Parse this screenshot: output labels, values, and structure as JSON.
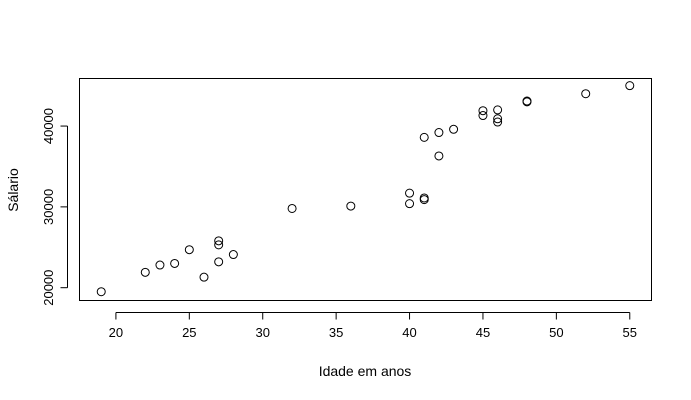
{
  "chart_data": {
    "type": "scatter",
    "title": "",
    "xlabel": "Idade em anos",
    "ylabel": "Sálario",
    "xlim": [
      17.52,
      56.48
    ],
    "ylim": [
      18415,
      45885
    ],
    "xticks": [
      20,
      25,
      30,
      35,
      40,
      45,
      50,
      55
    ],
    "yticks": [
      20000,
      30000,
      40000
    ],
    "xtick_labels": [
      "20",
      "25",
      "30",
      "35",
      "40",
      "45",
      "50",
      "55"
    ],
    "ytick_labels": [
      "20000",
      "30000",
      "40000"
    ],
    "grid": false,
    "legend": "none",
    "points": [
      {
        "x": 19,
        "y": 19500
      },
      {
        "x": 22,
        "y": 21900
      },
      {
        "x": 23,
        "y": 22800
      },
      {
        "x": 24,
        "y": 23000
      },
      {
        "x": 25,
        "y": 24700
      },
      {
        "x": 26,
        "y": 21300
      },
      {
        "x": 27,
        "y": 23200
      },
      {
        "x": 27,
        "y": 25300
      },
      {
        "x": 27,
        "y": 25800
      },
      {
        "x": 28,
        "y": 24100
      },
      {
        "x": 32,
        "y": 29800
      },
      {
        "x": 36,
        "y": 30100
      },
      {
        "x": 40,
        "y": 30400
      },
      {
        "x": 40,
        "y": 31700
      },
      {
        "x": 41,
        "y": 30900
      },
      {
        "x": 41,
        "y": 31100
      },
      {
        "x": 41,
        "y": 38600
      },
      {
        "x": 42,
        "y": 36300
      },
      {
        "x": 42,
        "y": 39200
      },
      {
        "x": 43,
        "y": 39600
      },
      {
        "x": 45,
        "y": 41300
      },
      {
        "x": 45,
        "y": 41900
      },
      {
        "x": 46,
        "y": 40500
      },
      {
        "x": 46,
        "y": 40900
      },
      {
        "x": 46,
        "y": 42000
      },
      {
        "x": 48,
        "y": 43000
      },
      {
        "x": 48,
        "y": 43100
      },
      {
        "x": 52,
        "y": 44000
      },
      {
        "x": 55,
        "y": 45000
      }
    ]
  }
}
